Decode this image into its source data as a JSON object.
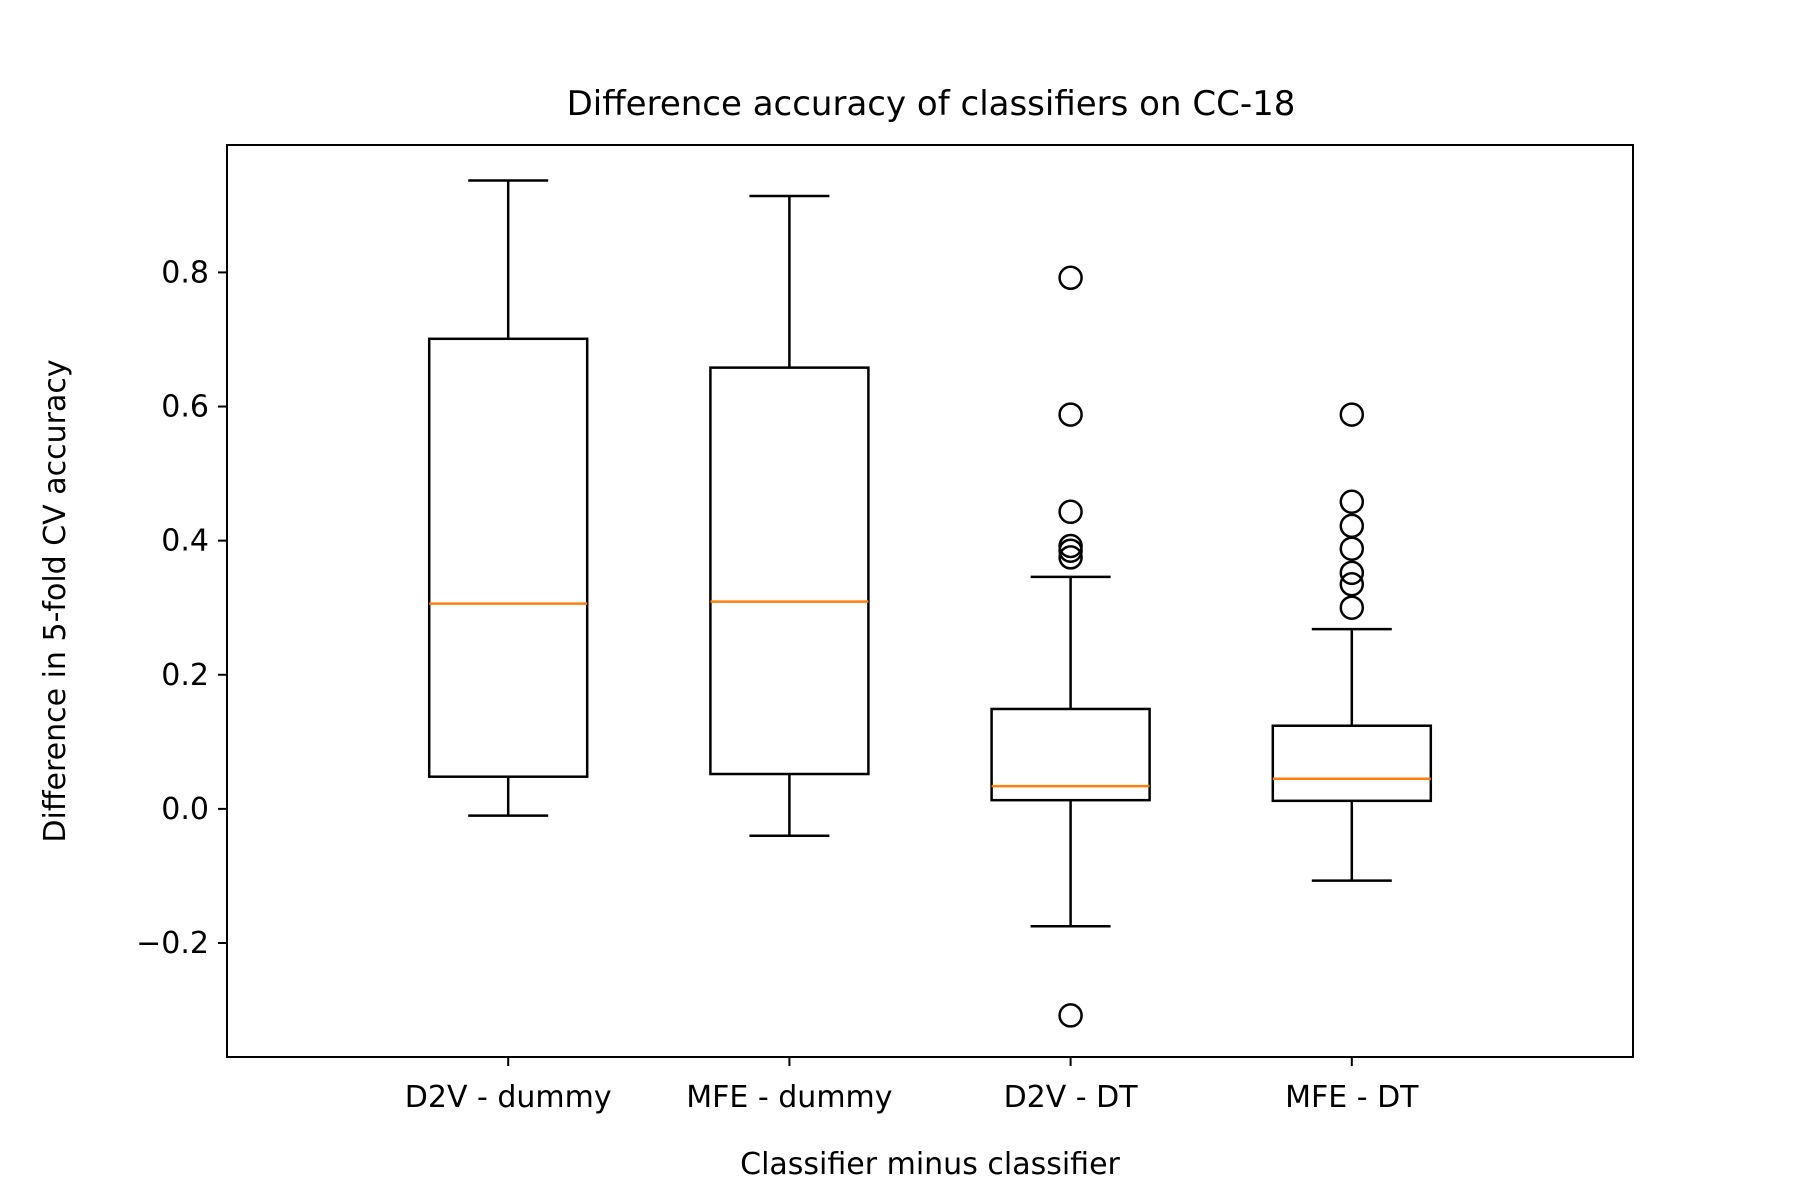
{
  "chart_data": {
    "type": "boxplot",
    "title": "Difference accuracy of classifiers on CC-18",
    "xlabel": "Classifier minus classifier",
    "ylabel": "Difference in 5-fold CV accuracy",
    "ylim": [
      -0.37,
      0.99
    ],
    "yticks": [
      -0.2,
      0.0,
      0.2,
      0.4,
      0.6,
      0.8
    ],
    "ytick_labels": [
      "−0.2",
      "0.0",
      "0.2",
      "0.4",
      "0.6",
      "0.8"
    ],
    "grid": false,
    "categories": [
      "D2V - dummy",
      "MFE - dummy",
      "D2V - DT",
      "MFE - DT"
    ],
    "boxes": [
      {
        "label": "D2V - dummy",
        "whisker_low": -0.01,
        "q1": 0.048,
        "median": 0.306,
        "q3": 0.701,
        "whisker_high": 0.937,
        "outliers": []
      },
      {
        "label": "MFE - dummy",
        "whisker_low": -0.04,
        "q1": 0.052,
        "median": 0.309,
        "q3": 0.658,
        "whisker_high": 0.914,
        "outliers": []
      },
      {
        "label": "D2V - DT",
        "whisker_low": -0.175,
        "q1": 0.013,
        "median": 0.034,
        "q3": 0.149,
        "whisker_high": 0.346,
        "outliers": [
          0.792,
          0.588,
          0.443,
          0.392,
          0.385,
          0.375,
          -0.308
        ]
      },
      {
        "label": "MFE - DT",
        "whisker_low": -0.107,
        "q1": 0.012,
        "median": 0.045,
        "q3": 0.124,
        "whisker_high": 0.268,
        "outliers": [
          0.588,
          0.458,
          0.422,
          0.388,
          0.352,
          0.335,
          0.3
        ]
      }
    ],
    "colors": {
      "box": "#000000",
      "median": "#ff7f0e",
      "outlier_edge": "#000000"
    }
  }
}
